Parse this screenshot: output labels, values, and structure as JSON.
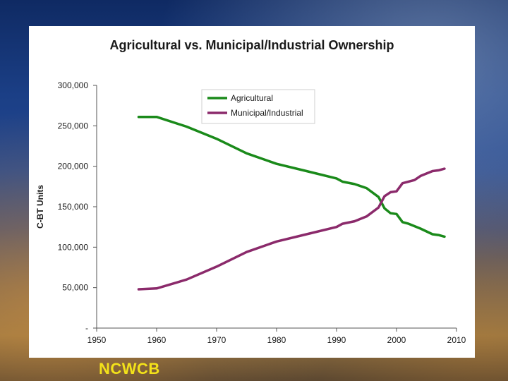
{
  "footer": {
    "label": "NCWCB"
  },
  "chart_data": {
    "type": "line",
    "title": "Agricultural vs. Municipal/Industrial Ownership",
    "xlabel": "",
    "ylabel": "C-BT Units",
    "xlim": [
      1950,
      2010
    ],
    "ylim": [
      0,
      300000
    ],
    "x_ticks": [
      1950,
      1960,
      1970,
      1980,
      1990,
      2000,
      2010
    ],
    "x_tick_labels": [
      "1950",
      "1960",
      "1970",
      "1980",
      "1990",
      "2000",
      "2010"
    ],
    "y_ticks": [
      0,
      50000,
      100000,
      150000,
      200000,
      250000,
      300000
    ],
    "y_tick_labels": [
      "-",
      "50,000",
      "100,000",
      "150,000",
      "200,000",
      "250,000",
      "300,000"
    ],
    "grid": false,
    "legend_placement": "top-center",
    "series": [
      {
        "name": "Agricultural",
        "color": "#1a8a1a",
        "points": [
          [
            1957,
            261000
          ],
          [
            1960,
            261000
          ],
          [
            1965,
            249000
          ],
          [
            1970,
            234000
          ],
          [
            1975,
            216000
          ],
          [
            1980,
            203000
          ],
          [
            1985,
            194000
          ],
          [
            1990,
            185000
          ],
          [
            1991,
            181000
          ],
          [
            1993,
            178000
          ],
          [
            1995,
            173000
          ],
          [
            1997,
            162000
          ],
          [
            1998,
            148000
          ],
          [
            1999,
            142000
          ],
          [
            2000,
            141000
          ],
          [
            2001,
            131000
          ],
          [
            2002,
            129000
          ],
          [
            2004,
            123000
          ],
          [
            2006,
            116000
          ],
          [
            2007,
            115000
          ],
          [
            2008,
            113000
          ]
        ]
      },
      {
        "name": "Municipal/Industrial",
        "color": "#8b2a6b",
        "points": [
          [
            1957,
            48000
          ],
          [
            1960,
            49000
          ],
          [
            1965,
            60000
          ],
          [
            1970,
            76000
          ],
          [
            1975,
            94000
          ],
          [
            1980,
            107000
          ],
          [
            1985,
            116000
          ],
          [
            1990,
            125000
          ],
          [
            1991,
            129000
          ],
          [
            1993,
            132000
          ],
          [
            1995,
            138000
          ],
          [
            1997,
            149000
          ],
          [
            1998,
            163000
          ],
          [
            1999,
            168000
          ],
          [
            2000,
            169000
          ],
          [
            2001,
            179000
          ],
          [
            2003,
            183000
          ],
          [
            2004,
            188000
          ],
          [
            2006,
            194000
          ],
          [
            2007,
            195000
          ],
          [
            2008,
            197000
          ]
        ]
      }
    ]
  }
}
